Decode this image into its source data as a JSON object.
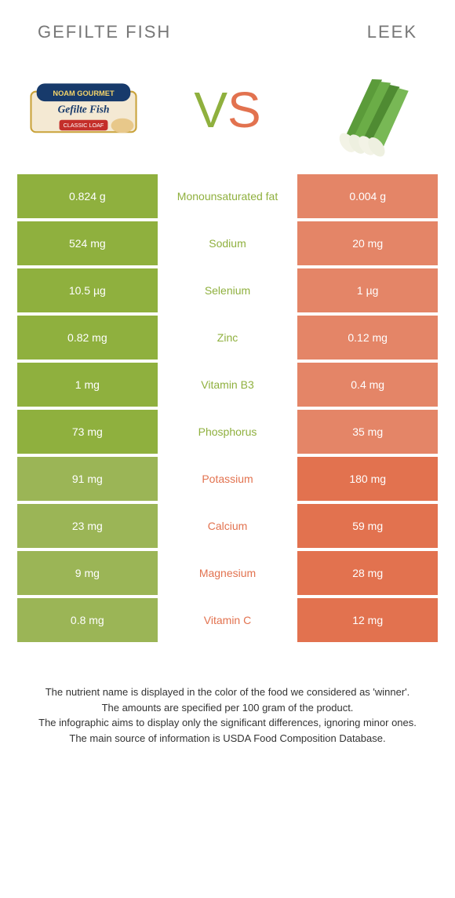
{
  "food_a": {
    "title": "Gefilte fish"
  },
  "food_b": {
    "title": "Leek"
  },
  "vs": {
    "v": "V",
    "s": "S"
  },
  "colors": {
    "green": "#8fb03e",
    "green_dim": "#9bb556",
    "orange": "#e2724f",
    "orange_dim": "#e48567",
    "green_text": "#8fb03e",
    "orange_text": "#e2724f"
  },
  "rows": [
    {
      "label": "Monounsaturated fat",
      "a": "0.824 g",
      "b": "0.004 g",
      "winner": "a"
    },
    {
      "label": "Sodium",
      "a": "524 mg",
      "b": "20 mg",
      "winner": "a"
    },
    {
      "label": "Selenium",
      "a": "10.5 µg",
      "b": "1 µg",
      "winner": "a"
    },
    {
      "label": "Zinc",
      "a": "0.82 mg",
      "b": "0.12 mg",
      "winner": "a"
    },
    {
      "label": "Vitamin B3",
      "a": "1 mg",
      "b": "0.4 mg",
      "winner": "a"
    },
    {
      "label": "Phosphorus",
      "a": "73 mg",
      "b": "35 mg",
      "winner": "a"
    },
    {
      "label": "Potassium",
      "a": "91 mg",
      "b": "180 mg",
      "winner": "b"
    },
    {
      "label": "Calcium",
      "a": "23 mg",
      "b": "59 mg",
      "winner": "b"
    },
    {
      "label": "Magnesium",
      "a": "9 mg",
      "b": "28 mg",
      "winner": "b"
    },
    {
      "label": "Vitamin C",
      "a": "0.8 mg",
      "b": "12 mg",
      "winner": "b"
    }
  ],
  "footer": {
    "l1": "The nutrient name is displayed in the color of the food we considered as 'winner'.",
    "l2": "The amounts are specified per 100 gram of the product.",
    "l3": "The infographic aims to display only the significant differences, ignoring minor ones.",
    "l4": "The main source of information is USDA Food Composition Database."
  }
}
